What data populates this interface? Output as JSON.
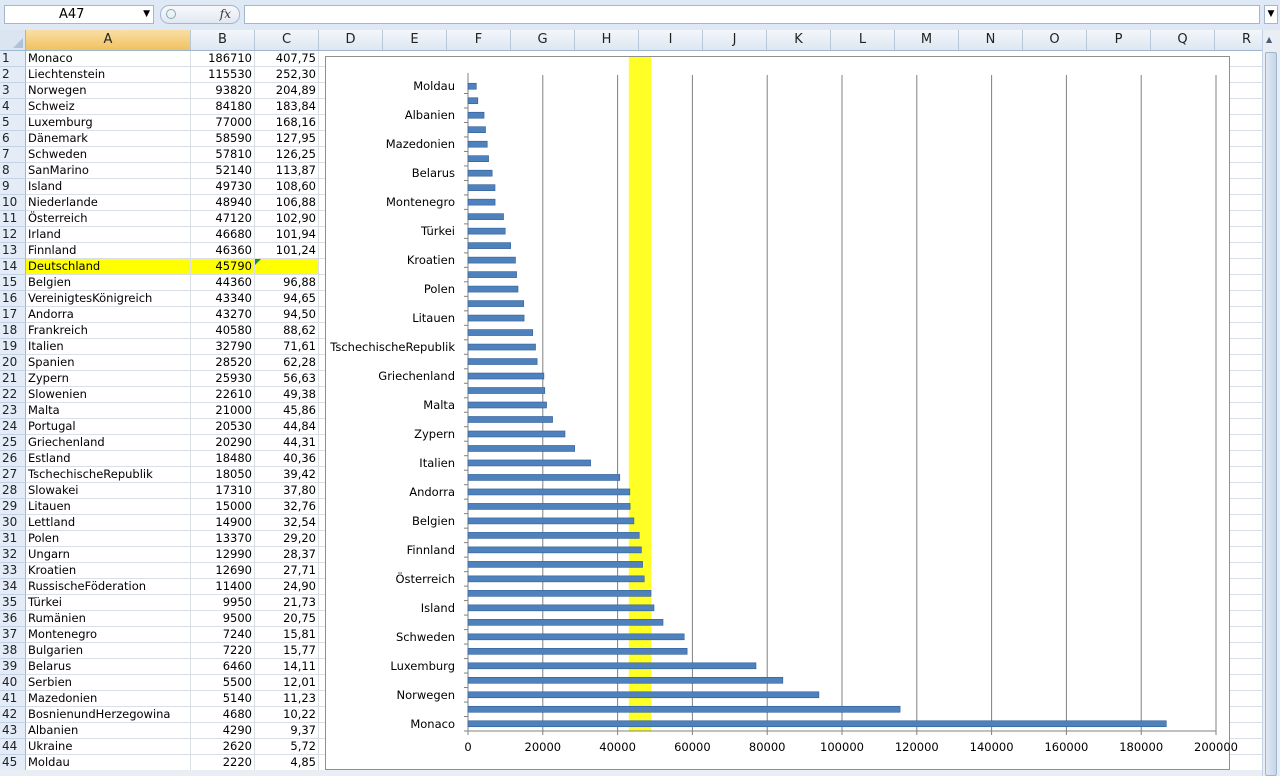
{
  "formula_bar": {
    "name_box": "A47",
    "fx_label": "fx",
    "formula": ""
  },
  "columns": [
    "A",
    "B",
    "C",
    "D",
    "E",
    "F",
    "G",
    "H",
    "I",
    "J",
    "K",
    "L",
    "M",
    "N",
    "O",
    "P",
    "Q",
    "R"
  ],
  "selected_column": "A",
  "rows": [
    {
      "n": "1",
      "a": "Monaco",
      "b": "186710",
      "c": "407,75"
    },
    {
      "n": "2",
      "a": "Liechtenstein",
      "b": "115530",
      "c": "252,30"
    },
    {
      "n": "3",
      "a": "Norwegen",
      "b": "93820",
      "c": "204,89"
    },
    {
      "n": "4",
      "a": "Schweiz",
      "b": "84180",
      "c": "183,84"
    },
    {
      "n": "5",
      "a": "Luxemburg",
      "b": "77000",
      "c": "168,16"
    },
    {
      "n": "6",
      "a": "Dänemark",
      "b": "58590",
      "c": "127,95"
    },
    {
      "n": "7",
      "a": "Schweden",
      "b": "57810",
      "c": "126,25"
    },
    {
      "n": "8",
      "a": "SanMarino",
      "b": "52140",
      "c": "113,87"
    },
    {
      "n": "9",
      "a": "Island",
      "b": "49730",
      "c": "108,60"
    },
    {
      "n": "10",
      "a": "Niederlande",
      "b": "48940",
      "c": "106,88"
    },
    {
      "n": "11",
      "a": "Österreich",
      "b": "47120",
      "c": "102,90"
    },
    {
      "n": "12",
      "a": "Irland",
      "b": "46680",
      "c": "101,94"
    },
    {
      "n": "13",
      "a": "Finnland",
      "b": "46360",
      "c": "101,24"
    },
    {
      "n": "14",
      "a": "Deutschland",
      "b": "45790",
      "c": "",
      "hl": true
    },
    {
      "n": "15",
      "a": "Belgien",
      "b": "44360",
      "c": "96,88"
    },
    {
      "n": "16",
      "a": "VereinigtesKönigreich",
      "b": "43340",
      "c": "94,65"
    },
    {
      "n": "17",
      "a": "Andorra",
      "b": "43270",
      "c": "94,50"
    },
    {
      "n": "18",
      "a": "Frankreich",
      "b": "40580",
      "c": "88,62"
    },
    {
      "n": "19",
      "a": "Italien",
      "b": "32790",
      "c": "71,61"
    },
    {
      "n": "20",
      "a": "Spanien",
      "b": "28520",
      "c": "62,28"
    },
    {
      "n": "21",
      "a": "Zypern",
      "b": "25930",
      "c": "56,63"
    },
    {
      "n": "22",
      "a": "Slowenien",
      "b": "22610",
      "c": "49,38"
    },
    {
      "n": "23",
      "a": "Malta",
      "b": "21000",
      "c": "45,86"
    },
    {
      "n": "24",
      "a": "Portugal",
      "b": "20530",
      "c": "44,84"
    },
    {
      "n": "25",
      "a": "Griechenland",
      "b": "20290",
      "c": "44,31"
    },
    {
      "n": "26",
      "a": "Estland",
      "b": "18480",
      "c": "40,36"
    },
    {
      "n": "27",
      "a": "TschechischeRepublik",
      "b": "18050",
      "c": "39,42"
    },
    {
      "n": "28",
      "a": "Slowakei",
      "b": "17310",
      "c": "37,80"
    },
    {
      "n": "29",
      "a": "Litauen",
      "b": "15000",
      "c": "32,76"
    },
    {
      "n": "30",
      "a": "Lettland",
      "b": "14900",
      "c": "32,54"
    },
    {
      "n": "31",
      "a": "Polen",
      "b": "13370",
      "c": "29,20"
    },
    {
      "n": "32",
      "a": "Ungarn",
      "b": "12990",
      "c": "28,37"
    },
    {
      "n": "33",
      "a": "Kroatien",
      "b": "12690",
      "c": "27,71"
    },
    {
      "n": "34",
      "a": "RussischeFöderation",
      "b": "11400",
      "c": "24,90"
    },
    {
      "n": "35",
      "a": "Türkei",
      "b": "9950",
      "c": "21,73"
    },
    {
      "n": "36",
      "a": "Rumänien",
      "b": "9500",
      "c": "20,75"
    },
    {
      "n": "37",
      "a": "Montenegro",
      "b": "7240",
      "c": "15,81"
    },
    {
      "n": "38",
      "a": "Bulgarien",
      "b": "7220",
      "c": "15,77"
    },
    {
      "n": "39",
      "a": "Belarus",
      "b": "6460",
      "c": "14,11"
    },
    {
      "n": "40",
      "a": "Serbien",
      "b": "5500",
      "c": "12,01"
    },
    {
      "n": "41",
      "a": "Mazedonien",
      "b": "5140",
      "c": "11,23"
    },
    {
      "n": "42",
      "a": "BosnienundHerzegowina",
      "b": "4680",
      "c": "10,22"
    },
    {
      "n": "43",
      "a": "Albanien",
      "b": "4290",
      "c": "9,37"
    },
    {
      "n": "44",
      "a": "Ukraine",
      "b": "2620",
      "c": "5,72"
    },
    {
      "n": "45",
      "a": "Moldau",
      "b": "2220",
      "c": "4,85"
    }
  ],
  "chart_data": {
    "type": "bar",
    "orientation": "horizontal",
    "categories": [
      "Moldau",
      "Ukraine",
      "Albanien",
      "BosnienundHerzegowina",
      "Mazedonien",
      "Serbien",
      "Belarus",
      "Bulgarien",
      "Montenegro",
      "Rumänien",
      "Türkei",
      "RussischeFöderation",
      "Kroatien",
      "Ungarn",
      "Polen",
      "Lettland",
      "Litauen",
      "Slowakei",
      "TschechischeRepublik",
      "Estland",
      "Griechenland",
      "Portugal",
      "Malta",
      "Slowenien",
      "Zypern",
      "Spanien",
      "Italien",
      "Frankreich",
      "Andorra",
      "VereinigtesKönigreich",
      "Belgien",
      "Deutschland",
      "Finnland",
      "Irland",
      "Österreich",
      "Niederlande",
      "Island",
      "SanMarino",
      "Schweden",
      "Dänemark",
      "Luxemburg",
      "Schweiz",
      "Norwegen",
      "Liechtenstein",
      "Monaco"
    ],
    "values": [
      2220,
      2620,
      4290,
      4680,
      5140,
      5500,
      6460,
      7220,
      7240,
      9500,
      9950,
      11400,
      12690,
      12990,
      13370,
      14900,
      15000,
      17310,
      18050,
      18480,
      20290,
      20530,
      21000,
      22610,
      25930,
      28520,
      32790,
      40580,
      43270,
      43340,
      44360,
      45790,
      46360,
      46680,
      47120,
      48940,
      49730,
      52140,
      57810,
      58590,
      77000,
      84180,
      93820,
      115530,
      186710
    ],
    "visible_category_labels": [
      "Moldau",
      "Albanien",
      "Mazedonien",
      "Belarus",
      "Montenegro",
      "Türkei",
      "Kroatien",
      "Polen",
      "Litauen",
      "TschechischeRepublik",
      "Griechenland",
      "Malta",
      "Zypern",
      "Italien",
      "Andorra",
      "Belgien",
      "Finnland",
      "Österreich",
      "Island",
      "Schweden",
      "Luxemburg",
      "Norwegen",
      "Monaco"
    ],
    "x_ticks": [
      "0",
      "20000",
      "40000",
      "60000",
      "80000",
      "100000",
      "120000",
      "140000",
      "160000",
      "180000",
      "200000"
    ],
    "xlim": [
      0,
      200000
    ],
    "highlight_band": [
      43000,
      49000
    ],
    "grid": "vertical",
    "bar_color": "#4f81bd",
    "highlight_color": "#ffff00"
  }
}
